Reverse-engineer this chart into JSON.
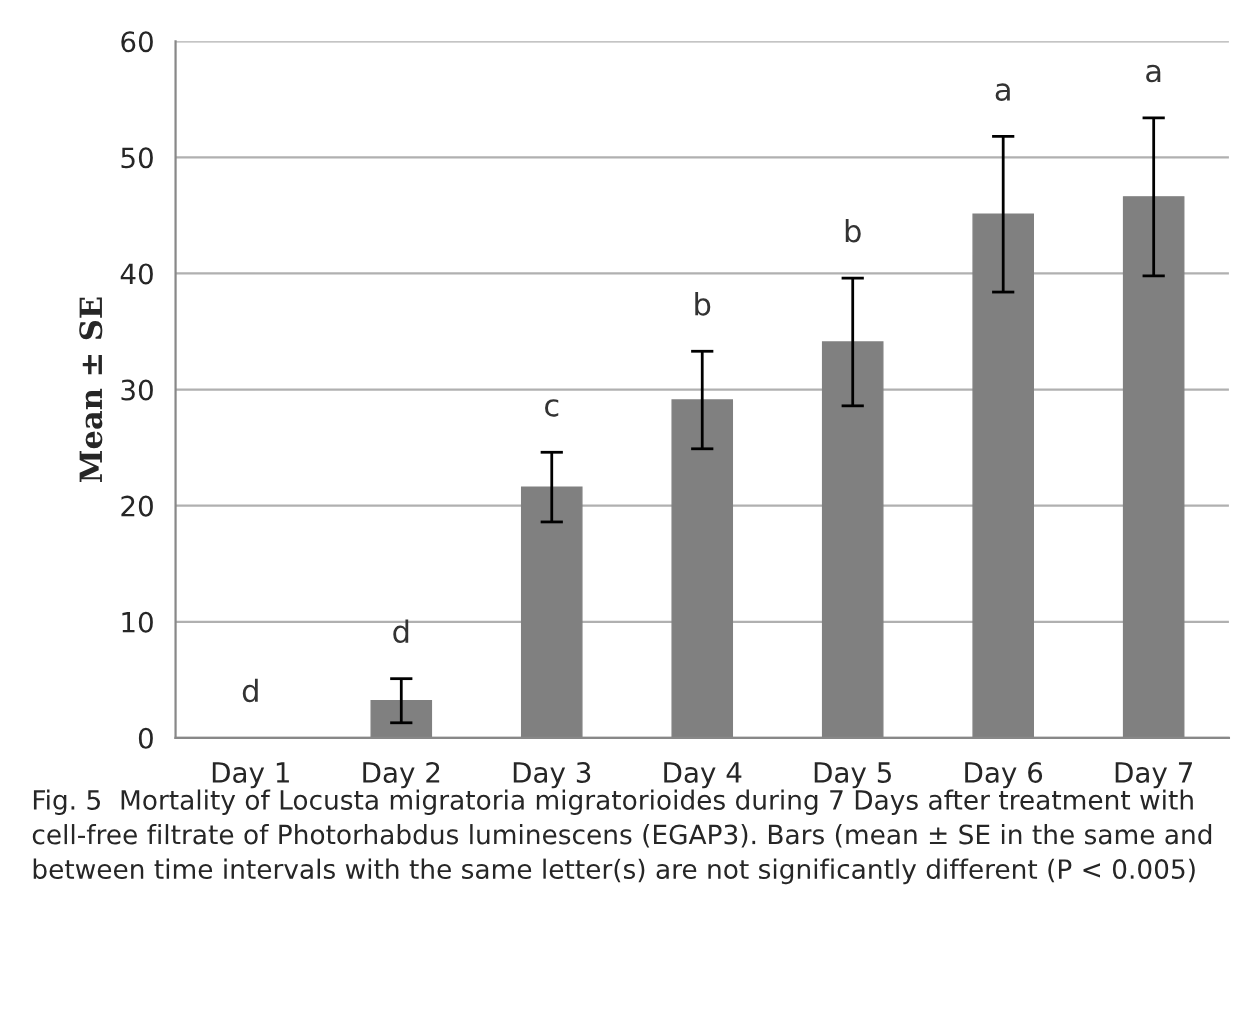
{
  "chart_data": {
    "type": "bar",
    "ylabel": "Mean ± SE",
    "categories": [
      "Day 1",
      "Day 2",
      "Day 3",
      "Day 4",
      "Day 5",
      "Day 6",
      "Day 7"
    ],
    "values": [
      0,
      3.2,
      21.6,
      29.1,
      34.1,
      45.1,
      46.6
    ],
    "errors": [
      null,
      1.9,
      3.0,
      4.2,
      5.5,
      6.7,
      6.8
    ],
    "color": "#808080",
    "ylim": [
      0,
      60
    ],
    "yticks": [
      0,
      10,
      20,
      30,
      40,
      50,
      60
    ],
    "grid": "y",
    "annotations": [
      "d",
      "d",
      "c",
      "b",
      "b",
      "a",
      "a",
      "Fig. 5  Mortality of Locusta migratoria migratorioides during 7 Days after treatment with cell-free filtrate of Photorhabdus luminescens (EGAP3). Bars (mean ± SE in the same and between time intervals with the same letter(s) are not significantly different (P < 0.005)"
    ]
  }
}
